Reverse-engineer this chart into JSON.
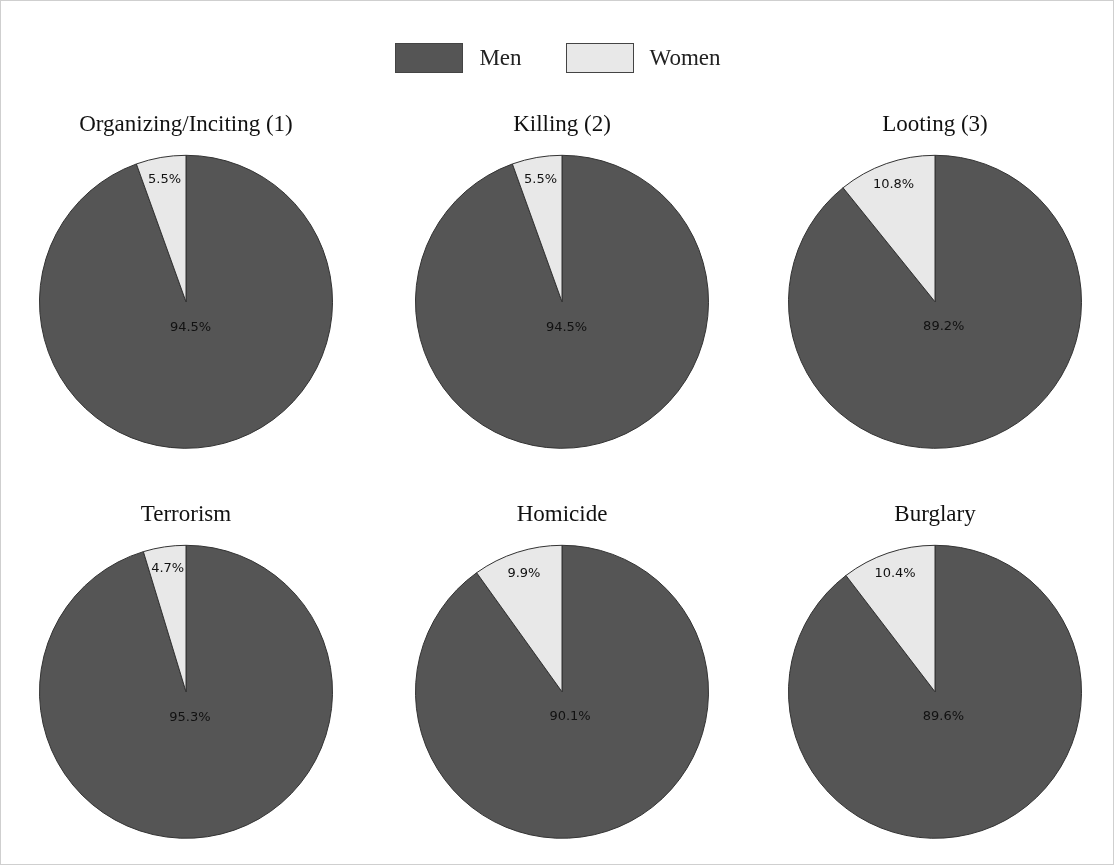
{
  "chart_data": [
    {
      "type": "pie",
      "title": "Organizing/Inciting (1)",
      "categories": [
        "Men",
        "Women"
      ],
      "values": [
        94.5,
        5.5
      ],
      "colors": [
        "#555555",
        "#e8e8e8"
      ],
      "value_labels": [
        "94.5%",
        "5.5%"
      ],
      "legend": "top"
    },
    {
      "type": "pie",
      "title": "Killing (2)",
      "categories": [
        null,
        null
      ],
      "values": [
        94.5,
        5.5
      ],
      "colors": [
        "#555555",
        "#e8e8e8"
      ],
      "value_labels": [
        "94.5%",
        "5.5%"
      ]
    },
    {
      "type": "pie",
      "title": "Looting (3)",
      "categories": [
        null,
        null
      ],
      "values": [
        89.2,
        10.8
      ],
      "colors": [
        "#555555",
        "#e8e8e8"
      ],
      "value_labels": [
        "89.2%",
        "10.8%"
      ]
    },
    {
      "type": "pie",
      "title": "Terrorism",
      "categories": [
        null,
        null
      ],
      "values": [
        95.3,
        4.7
      ],
      "colors": [
        "#555555",
        "#e8e8e8"
      ],
      "value_labels": [
        "95.3%",
        "4.7%"
      ]
    },
    {
      "type": "pie",
      "title": "Homicide",
      "categories": [
        null,
        null
      ],
      "values": [
        90.1,
        9.9
      ],
      "colors": [
        "#555555",
        "#e8e8e8"
      ],
      "value_labels": [
        "90.1%",
        "9.9%"
      ]
    },
    {
      "type": "pie",
      "title": "Burglary",
      "categories": [
        null,
        null
      ],
      "values": [
        89.6,
        10.4
      ],
      "colors": [
        "#555555",
        "#e8e8e8"
      ],
      "value_labels": [
        "89.6%",
        "10.4%"
      ]
    }
  ]
}
